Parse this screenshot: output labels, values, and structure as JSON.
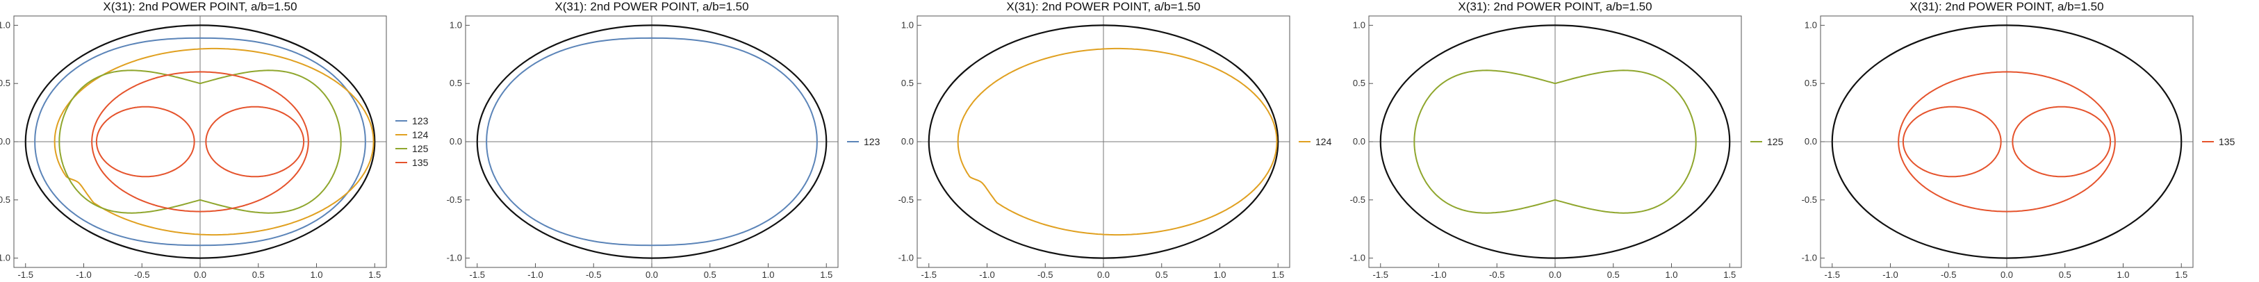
{
  "chart_data": [
    {
      "type": "line",
      "title": "X(31): 2nd POWER POINT, a/b=1.50",
      "xlim": [
        -1.6,
        1.6
      ],
      "ylim": [
        -1.08,
        1.08
      ],
      "xticks": [
        "-1.5",
        "-1.0",
        "-0.5",
        "0.0",
        "0.5",
        "1.0",
        "1.5"
      ],
      "yticks": [
        "1.0",
        "0.5",
        "0.0",
        "-0.5",
        "-1.0"
      ],
      "legend_position": "right",
      "series": [
        {
          "name": "123",
          "color": "#5b84b8"
        },
        {
          "name": "124",
          "color": "#e0a020"
        },
        {
          "name": "125",
          "color": "#8fa62d"
        },
        {
          "name": "135",
          "color": "#e5532c"
        }
      ]
    },
    {
      "type": "line",
      "title": "X(31): 2nd POWER POINT, a/b=1.50",
      "xlim": [
        -1.6,
        1.6
      ],
      "ylim": [
        -1.08,
        1.08
      ],
      "xticks": [
        "-1.5",
        "-1.0",
        "-0.5",
        "0.0",
        "0.5",
        "1.0",
        "1.5"
      ],
      "yticks": [
        "1.0",
        "0.5",
        "0.0",
        "-0.5",
        "-1.0"
      ],
      "legend_position": "right",
      "series": [
        {
          "name": "123",
          "color": "#5b84b8"
        }
      ]
    },
    {
      "type": "line",
      "title": "X(31): 2nd POWER POINT, a/b=1.50",
      "xlim": [
        -1.6,
        1.6
      ],
      "ylim": [
        -1.08,
        1.08
      ],
      "xticks": [
        "-1.5",
        "-1.0",
        "-0.5",
        "0.0",
        "0.5",
        "1.0",
        "1.5"
      ],
      "yticks": [
        "1.0",
        "0.5",
        "0.0",
        "-0.5",
        "-1.0"
      ],
      "legend_position": "right",
      "series": [
        {
          "name": "124",
          "color": "#e0a020"
        }
      ]
    },
    {
      "type": "line",
      "title": "X(31): 2nd POWER POINT, a/b=1.50",
      "xlim": [
        -1.6,
        1.6
      ],
      "ylim": [
        -1.08,
        1.08
      ],
      "xticks": [
        "-1.5",
        "-1.0",
        "-0.5",
        "0.0",
        "0.5",
        "1.0",
        "1.5"
      ],
      "yticks": [
        "1.0",
        "0.5",
        "0.0",
        "-0.5",
        "-1.0"
      ],
      "legend_position": "right",
      "series": [
        {
          "name": "125",
          "color": "#8fa62d"
        }
      ]
    },
    {
      "type": "line",
      "title": "X(31): 2nd POWER POINT, a/b=1.50",
      "xlim": [
        -1.6,
        1.6
      ],
      "ylim": [
        -1.08,
        1.08
      ],
      "xticks": [
        "-1.5",
        "-1.0",
        "-0.5",
        "0.0",
        "0.5",
        "1.0",
        "1.5"
      ],
      "yticks": [
        "1.0",
        "0.5",
        "0.0",
        "-0.5",
        "-1.0"
      ],
      "legend_position": "right",
      "series": [
        {
          "name": "135",
          "color": "#e5532c"
        }
      ]
    }
  ]
}
